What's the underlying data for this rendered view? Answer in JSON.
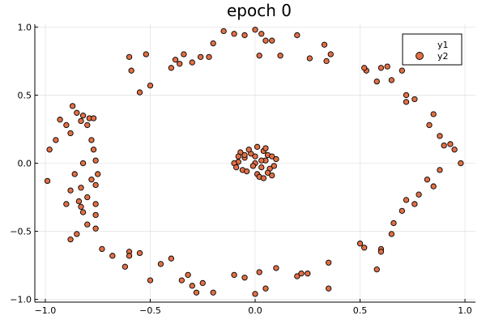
{
  "chart_data": {
    "type": "scatter",
    "title": "epoch 0",
    "xlabel": "",
    "ylabel": "",
    "xlim": [
      -1.05,
      1.05
    ],
    "ylim": [
      -1.02,
      1.02
    ],
    "xticks": [
      -1.0,
      -0.5,
      0.0,
      0.5,
      1.0
    ],
    "xtick_labels": [
      "−1.0",
      "−0.5",
      "0.0",
      "0.5",
      "1.0"
    ],
    "yticks": [
      -1.0,
      -0.5,
      0.0,
      0.5,
      1.0
    ],
    "ytick_labels": [
      "−1.0",
      "−0.5",
      "0.0",
      "0.5",
      "1.0"
    ],
    "grid": true,
    "legend_position": "top-right",
    "colors": {
      "y2": "#e26f46"
    },
    "series": [
      {
        "name": "y1",
        "x": [],
        "y": []
      },
      {
        "name": "y2",
        "x": [
          0.0,
          0.05,
          -0.05,
          0.03,
          -0.08,
          0.09,
          -0.02,
          0.06,
          -0.06,
          0.01,
          0.08,
          -0.1,
          0.04,
          -0.04,
          0.1,
          -0.07,
          0.02,
          0.07,
          -0.03,
          0.0,
          0.06,
          -0.09,
          0.03,
          -0.01,
          0.05,
          -0.05,
          0.08,
          -0.08,
          0.01,
          0.04,
          -0.98,
          -0.95,
          -0.93,
          -0.9,
          -0.88,
          -0.87,
          -0.85,
          -0.83,
          -0.82,
          -0.8,
          -0.79,
          -0.78,
          -0.77,
          -0.76,
          -0.75,
          -0.88,
          -0.83,
          -0.78,
          -0.76,
          -0.9,
          -0.84,
          -0.8,
          -0.86,
          -0.82,
          -0.99,
          -0.76,
          -0.77,
          -0.6,
          -0.59,
          -0.55,
          -0.52,
          -0.5,
          -0.38,
          -0.36,
          -0.34,
          -0.3,
          -0.26,
          -0.2,
          -0.15,
          -0.1,
          -0.05,
          0.0,
          0.03,
          0.05,
          0.08,
          0.12,
          0.2,
          0.26,
          0.33,
          0.36,
          0.34,
          -0.4,
          -0.22,
          0.02,
          0.53,
          0.52,
          0.58,
          0.6,
          0.63,
          0.65,
          0.7,
          0.72,
          0.76,
          0.72,
          0.83,
          0.85,
          0.88,
          0.9,
          0.93,
          0.95,
          0.98,
          0.88,
          0.85,
          0.82,
          0.78,
          0.76,
          0.72,
          0.7,
          0.66,
          0.65,
          0.6,
          0.6,
          0.58,
          0.52,
          0.5,
          -0.73,
          -0.68,
          -0.62,
          -0.6,
          -0.55,
          -0.5,
          -0.45,
          -0.4,
          -0.35,
          -0.32,
          -0.3,
          -0.28,
          -0.2,
          -0.1,
          -0.05,
          0.0,
          0.05,
          0.1,
          0.2,
          0.22,
          0.25,
          0.35,
          0.35,
          -0.6,
          -0.25,
          0.02,
          -0.85,
          -0.83,
          -0.8,
          -0.76,
          -0.88,
          -0.82,
          -0.76
        ],
        "y": [
          0.0,
          0.02,
          0.04,
          -0.03,
          0.01,
          -0.02,
          0.07,
          0.06,
          -0.05,
          -0.08,
          0.05,
          0.0,
          0.09,
          -0.06,
          0.03,
          0.08,
          -0.1,
          -0.04,
          0.1,
          0.05,
          -0.07,
          -0.03,
          0.02,
          -0.02,
          0.11,
          0.06,
          -0.09,
          0.05,
          0.12,
          -0.11,
          0.1,
          0.17,
          0.32,
          0.28,
          0.22,
          0.42,
          0.37,
          0.31,
          0.35,
          0.28,
          0.33,
          0.17,
          0.1,
          0.02,
          -0.08,
          -0.2,
          -0.18,
          -0.12,
          -0.16,
          -0.3,
          -0.28,
          -0.25,
          -0.08,
          0.0,
          -0.13,
          -0.38,
          0.33,
          0.78,
          0.68,
          0.52,
          0.8,
          0.57,
          0.76,
          0.73,
          0.8,
          0.74,
          0.78,
          0.88,
          0.97,
          0.95,
          0.94,
          0.98,
          0.95,
          0.9,
          0.9,
          0.79,
          0.94,
          0.77,
          0.87,
          0.8,
          0.75,
          0.7,
          0.78,
          0.79,
          0.68,
          0.7,
          0.6,
          0.7,
          0.71,
          0.61,
          0.68,
          0.5,
          0.47,
          0.45,
          0.28,
          0.36,
          0.2,
          0.13,
          0.14,
          0.1,
          0.0,
          -0.05,
          -0.17,
          -0.12,
          -0.23,
          -0.3,
          -0.27,
          -0.35,
          -0.44,
          -0.52,
          -0.63,
          -0.65,
          -0.78,
          -0.62,
          -0.59,
          -0.63,
          -0.68,
          -0.76,
          -0.65,
          -0.66,
          -0.86,
          -0.74,
          -0.7,
          -0.86,
          -0.82,
          -0.9,
          -0.95,
          -0.95,
          -0.82,
          -0.84,
          -0.96,
          -0.92,
          -0.77,
          -0.83,
          -0.81,
          -0.81,
          -0.73,
          -0.92,
          -0.68,
          -0.88,
          -0.8,
          -0.52,
          -0.32,
          -0.45,
          -0.48,
          -0.56,
          -0.36,
          -0.3
        ]
      }
    ]
  }
}
